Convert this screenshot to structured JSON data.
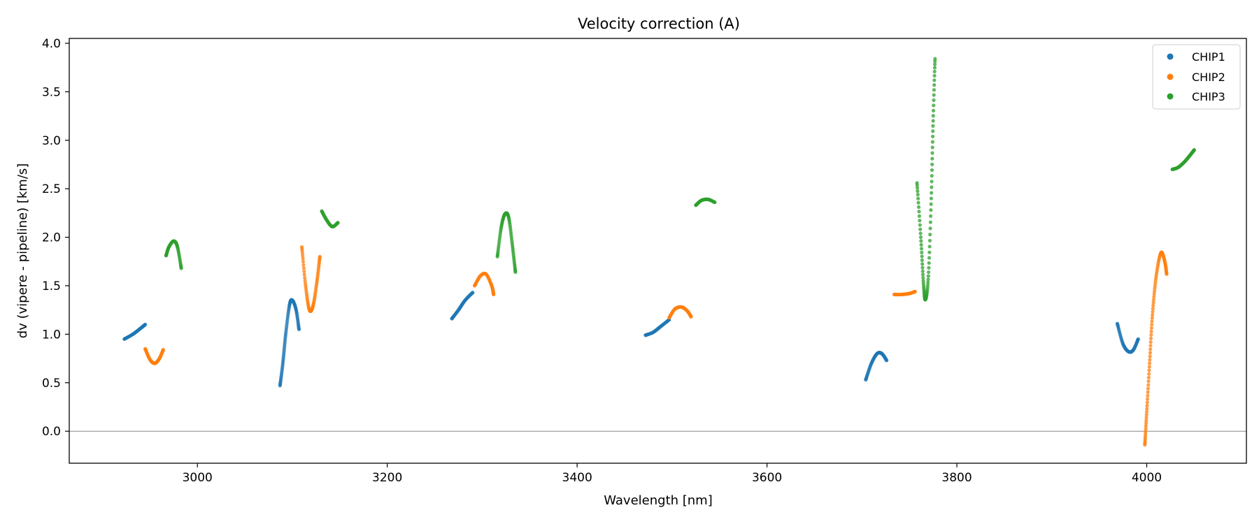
{
  "chart_data": {
    "type": "scatter",
    "title": "Velocity correction (A)",
    "xlabel": "Wavelength [nm]",
    "ylabel": "dv (vipere - pipeline) [km/s]",
    "xlim": [
      2865,
      4105
    ],
    "ylim": [
      -0.33,
      4.05
    ],
    "xticks": [
      3000,
      3200,
      3400,
      3600,
      3800,
      4000
    ],
    "yticks": [
      0.0,
      0.5,
      1.0,
      1.5,
      2.0,
      2.5,
      3.0,
      3.5,
      4.0
    ],
    "ytick_labels": [
      "0.0",
      "0.5",
      "1.0",
      "1.5",
      "2.0",
      "2.5",
      "3.0",
      "3.5",
      "4.0"
    ],
    "hline": 0.0,
    "legend": {
      "position": "top-right",
      "entries": [
        "CHIP1",
        "CHIP2",
        "CHIP3"
      ]
    },
    "series": [
      {
        "name": "CHIP1",
        "color": "#1f77b4",
        "segments": [
          [
            [
              2923,
              0.95
            ],
            [
              2932,
              1.0
            ],
            [
              2940,
              1.06
            ],
            [
              2945,
              1.1
            ]
          ],
          [
            [
              3087,
              0.47
            ],
            [
              3090,
              0.7
            ],
            [
              3093,
              1.0
            ],
            [
              3097,
              1.3
            ],
            [
              3100,
              1.35
            ],
            [
              3104,
              1.25
            ],
            [
              3107,
              1.05
            ]
          ],
          [
            [
              3268,
              1.16
            ],
            [
              3275,
              1.25
            ],
            [
              3282,
              1.35
            ],
            [
              3290,
              1.43
            ]
          ],
          [
            [
              3472,
              0.99
            ],
            [
              3480,
              1.02
            ],
            [
              3488,
              1.08
            ],
            [
              3497,
              1.15
            ]
          ],
          [
            [
              3704,
              0.53
            ],
            [
              3710,
              0.7
            ],
            [
              3716,
              0.8
            ],
            [
              3721,
              0.8
            ],
            [
              3726,
              0.73
            ]
          ],
          [
            [
              3969,
              1.11
            ],
            [
              3975,
              0.9
            ],
            [
              3981,
              0.82
            ],
            [
              3986,
              0.84
            ],
            [
              3991,
              0.95
            ]
          ]
        ]
      },
      {
        "name": "CHIP2",
        "color": "#ff7f0e",
        "segments": [
          [
            [
              2945,
              0.85
            ],
            [
              2950,
              0.74
            ],
            [
              2955,
              0.7
            ],
            [
              2960,
              0.75
            ],
            [
              2964,
              0.84
            ]
          ],
          [
            [
              3110,
              1.9
            ],
            [
              3114,
              1.5
            ],
            [
              3118,
              1.25
            ],
            [
              3122,
              1.3
            ],
            [
              3126,
              1.55
            ],
            [
              3129,
              1.8
            ]
          ],
          [
            [
              3292,
              1.5
            ],
            [
              3298,
              1.6
            ],
            [
              3304,
              1.62
            ],
            [
              3310,
              1.5
            ],
            [
              3312,
              1.41
            ]
          ],
          [
            [
              3497,
              1.17
            ],
            [
              3503,
              1.26
            ],
            [
              3510,
              1.28
            ],
            [
              3516,
              1.24
            ],
            [
              3520,
              1.18
            ]
          ],
          [
            [
              3734,
              1.41
            ],
            [
              3742,
              1.41
            ],
            [
              3750,
              1.42
            ],
            [
              3756,
              1.44
            ]
          ],
          [
            [
              3998,
              -0.14
            ],
            [
              4000,
              0.2
            ],
            [
              4003,
              0.7
            ],
            [
              4006,
              1.2
            ],
            [
              4010,
              1.6
            ],
            [
              4015,
              1.84
            ],
            [
              4019,
              1.75
            ],
            [
              4021,
              1.62
            ]
          ]
        ]
      },
      {
        "name": "CHIP3",
        "color": "#2ca02c",
        "segments": [
          [
            [
              2967,
              1.81
            ],
            [
              2970,
              1.9
            ],
            [
              2975,
              1.96
            ],
            [
              2979,
              1.9
            ],
            [
              2983,
              1.68
            ]
          ],
          [
            [
              3131,
              2.27
            ],
            [
              3136,
              2.18
            ],
            [
              3142,
              2.11
            ],
            [
              3148,
              2.15
            ]
          ],
          [
            [
              3316,
              1.8
            ],
            [
              3320,
              2.1
            ],
            [
              3324,
              2.24
            ],
            [
              3328,
              2.2
            ],
            [
              3332,
              1.9
            ],
            [
              3335,
              1.64
            ]
          ],
          [
            [
              3525,
              2.33
            ],
            [
              3531,
              2.38
            ],
            [
              3538,
              2.39
            ],
            [
              3545,
              2.36
            ]
          ],
          [
            [
              3758,
              2.56
            ],
            [
              3762,
              2.0
            ],
            [
              3765,
              1.5
            ],
            [
              3767,
              1.36
            ],
            [
              3770,
              1.6
            ],
            [
              3773,
              2.4
            ],
            [
              3775,
              3.2
            ],
            [
              3777,
              3.84
            ]
          ],
          [
            [
              4027,
              2.7
            ],
            [
              4033,
              2.72
            ],
            [
              4040,
              2.78
            ],
            [
              4046,
              2.85
            ],
            [
              4050,
              2.9
            ]
          ]
        ]
      }
    ]
  }
}
